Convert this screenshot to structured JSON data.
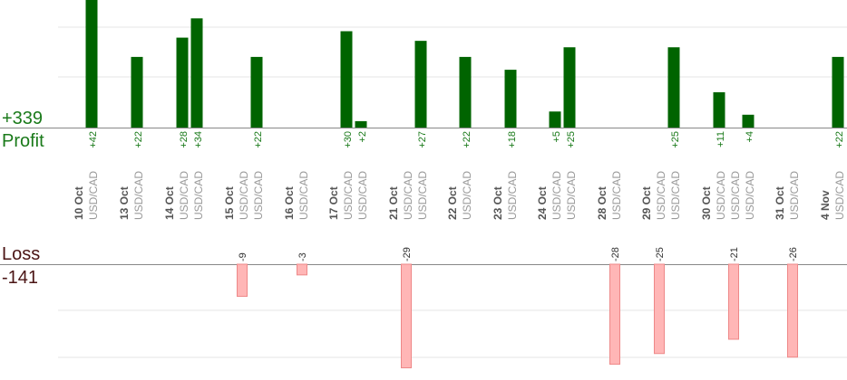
{
  "labels": {
    "profit_total": "+339",
    "profit_label": "Profit",
    "loss_label": "Loss",
    "loss_total": "-141"
  },
  "colors": {
    "profit_bar": "#006400",
    "loss_bar": "#ffb6b6",
    "loss_bar_border": "#ee8888",
    "profit_text": "#1a7a1a",
    "loss_text": "#4a1414",
    "date_text": "#555555",
    "pair_text": "#999999",
    "grid": "#e6e6e6",
    "baseline": "#888888"
  },
  "chart_data": {
    "type": "bar",
    "profit_axis_range": [
      0,
      42
    ],
    "loss_axis_range": [
      0,
      29
    ],
    "dates": [
      {
        "date": "10 Oct",
        "trades": [
          {
            "pair": "USD/CAD",
            "value": 42
          }
        ]
      },
      {
        "date": "13 Oct",
        "trades": [
          {
            "pair": "USD/CAD",
            "value": 22
          }
        ]
      },
      {
        "date": "14 Oct",
        "trades": [
          {
            "pair": "USD/CAD",
            "value": 28
          },
          {
            "pair": "USD/CAD",
            "value": 34
          }
        ]
      },
      {
        "date": "15 Oct",
        "trades": [
          {
            "pair": "USD/CAD",
            "value": -9
          },
          {
            "pair": "USD/CAD",
            "value": 22
          }
        ]
      },
      {
        "date": "16 Oct",
        "trades": [
          {
            "pair": "USD/CAD",
            "value": -3
          }
        ]
      },
      {
        "date": "17 Oct",
        "trades": [
          {
            "pair": "USD/CAD",
            "value": 30
          },
          {
            "pair": "USD/CAD",
            "value": 2
          }
        ]
      },
      {
        "date": "21 Oct",
        "trades": [
          {
            "pair": "USD/CAD",
            "value": -29
          },
          {
            "pair": "USD/CAD",
            "value": 27
          }
        ]
      },
      {
        "date": "22 Oct",
        "trades": [
          {
            "pair": "USD/CAD",
            "value": 22
          }
        ]
      },
      {
        "date": "23 Oct",
        "trades": [
          {
            "pair": "USD/CAD",
            "value": 18
          }
        ]
      },
      {
        "date": "24 Oct",
        "trades": [
          {
            "pair": "USD/CAD",
            "value": 5
          },
          {
            "pair": "USD/CAD",
            "value": 25
          }
        ]
      },
      {
        "date": "28 Oct",
        "trades": [
          {
            "pair": "USD/CAD",
            "value": -28
          }
        ]
      },
      {
        "date": "29 Oct",
        "trades": [
          {
            "pair": "USD/CAD",
            "value": -25
          },
          {
            "pair": "USD/CAD",
            "value": 25
          }
        ]
      },
      {
        "date": "30 Oct",
        "trades": [
          {
            "pair": "USD/CAD",
            "value": 11
          },
          {
            "pair": "USD/CAD",
            "value": -21
          },
          {
            "pair": "USD/CAD",
            "value": 4
          }
        ]
      },
      {
        "date": "31 Oct",
        "trades": [
          {
            "pair": "USD/CAD",
            "value": -26
          }
        ]
      },
      {
        "date": "4 Nov",
        "trades": [
          {
            "pair": "USD/CAD",
            "value": 22
          }
        ]
      }
    ]
  }
}
